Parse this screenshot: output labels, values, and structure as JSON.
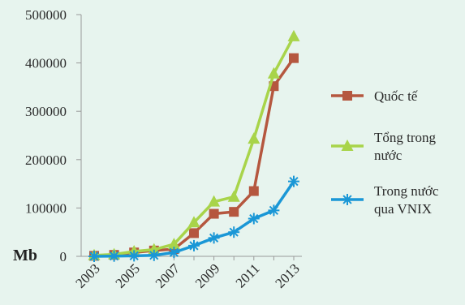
{
  "chart_data": {
    "type": "line",
    "unit_label": "Mb",
    "x": [
      2003,
      2004,
      2005,
      2006,
      2007,
      2008,
      2009,
      2010,
      2011,
      2012,
      2013
    ],
    "x_tick_labels": [
      "2003",
      "2005",
      "2007",
      "2009",
      "2011",
      "2013"
    ],
    "y_tick_labels": [
      "0",
      "100000",
      "200000",
      "300000",
      "400000",
      "500000"
    ],
    "ylim": [
      0,
      500000
    ],
    "grid": false,
    "legend_position": "right",
    "series": [
      {
        "name": "Quốc tế",
        "color": "#b5573f",
        "marker": "square",
        "values": [
          1000,
          3000,
          8000,
          12000,
          15000,
          48000,
          88000,
          92000,
          135000,
          352000,
          410000
        ]
      },
      {
        "name": "Tổng trong nước",
        "color": "#a8d44a",
        "marker": "triangle",
        "values": [
          2000,
          4000,
          10000,
          14000,
          25000,
          70000,
          113000,
          123000,
          243000,
          378000,
          455000
        ]
      },
      {
        "name": "Trong nước qua VNIX",
        "color": "#1a97d6",
        "marker": "star",
        "values": [
          0,
          500,
          1000,
          2000,
          8000,
          22000,
          38000,
          50000,
          78000,
          95000,
          155000
        ]
      }
    ]
  }
}
